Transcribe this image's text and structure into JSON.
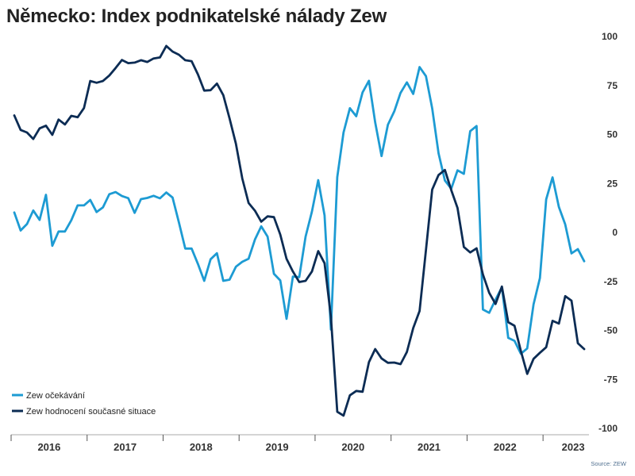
{
  "source": "Source: ZEW",
  "colors": {
    "axis": "#a8a8a8",
    "tick": "#555555"
  },
  "chart_data": {
    "type": "line",
    "title": "Německo: Index podnikatelské nálady Zew",
    "ylim": [
      -100,
      100
    ],
    "yaxis_side": "right",
    "grid": false,
    "legend": {
      "placement": "bottom-left"
    },
    "y_ticks": [
      100,
      75,
      50,
      25,
      0,
      -25,
      -50,
      -75,
      -100
    ],
    "x_tick_labels": [
      "2016",
      "2017",
      "2018",
      "2019",
      "2020",
      "2021",
      "2022",
      "2023"
    ],
    "x": [
      "2016-01",
      "2016-02",
      "2016-03",
      "2016-04",
      "2016-05",
      "2016-06",
      "2016-07",
      "2016-08",
      "2016-09",
      "2016-10",
      "2016-11",
      "2016-12",
      "2017-01",
      "2017-02",
      "2017-03",
      "2017-04",
      "2017-05",
      "2017-06",
      "2017-07",
      "2017-08",
      "2017-09",
      "2017-10",
      "2017-11",
      "2017-12",
      "2018-01",
      "2018-02",
      "2018-03",
      "2018-04",
      "2018-05",
      "2018-06",
      "2018-07",
      "2018-08",
      "2018-09",
      "2018-10",
      "2018-11",
      "2018-12",
      "2019-01",
      "2019-02",
      "2019-03",
      "2019-04",
      "2019-05",
      "2019-06",
      "2019-07",
      "2019-08",
      "2019-09",
      "2019-10",
      "2019-11",
      "2019-12",
      "2020-01",
      "2020-02",
      "2020-03",
      "2020-04",
      "2020-05",
      "2020-06",
      "2020-07",
      "2020-08",
      "2020-09",
      "2020-10",
      "2020-11",
      "2020-12",
      "2021-01",
      "2021-02",
      "2021-03",
      "2021-04",
      "2021-05",
      "2021-06",
      "2021-07",
      "2021-08",
      "2021-09",
      "2021-10",
      "2021-11",
      "2021-12",
      "2022-01",
      "2022-02",
      "2022-03",
      "2022-04",
      "2022-05",
      "2022-06",
      "2022-07",
      "2022-08",
      "2022-09",
      "2022-10",
      "2022-11",
      "2022-12",
      "2023-01",
      "2023-02",
      "2023-03",
      "2023-04",
      "2023-05",
      "2023-06",
      "2023-07"
    ],
    "series": [
      {
        "name": "Zew očekávání",
        "color": "#1d9bd3",
        "values": [
          10.2,
          1.0,
          4.3,
          11.2,
          6.4,
          19.2,
          -6.8,
          0.5,
          0.5,
          6.2,
          13.8,
          13.8,
          16.6,
          10.4,
          12.8,
          19.5,
          20.6,
          18.6,
          17.5,
          10.0,
          17.0,
          17.6,
          18.7,
          17.4,
          20.4,
          17.8,
          5.1,
          -8.2,
          -8.2,
          -16.1,
          -24.7,
          -13.7,
          -10.6,
          -24.7,
          -24.1,
          -17.5,
          -15.0,
          -13.4,
          -3.6,
          3.1,
          -2.1,
          -21.1,
          -24.5,
          -44.1,
          -22.5,
          -22.8,
          -2.1,
          10.7,
          26.7,
          8.7,
          -49.5,
          28.2,
          51.0,
          63.4,
          59.3,
          71.5,
          77.4,
          56.1,
          39.0,
          55.0,
          61.8,
          71.2,
          76.6,
          70.7,
          84.4,
          79.8,
          63.3,
          40.4,
          26.5,
          22.3,
          31.7,
          29.9,
          51.7,
          54.3,
          -39.3,
          -41.0,
          -34.3,
          -28.0,
          -53.8,
          -55.3,
          -61.9,
          -59.2,
          -36.7,
          -23.3,
          16.9,
          28.1,
          13.0,
          4.1,
          -10.7,
          -8.5,
          -14.7
        ]
      },
      {
        "name": "Zew hodnocení současné situace",
        "color": "#0c2c54",
        "values": [
          59.7,
          52.3,
          51.0,
          47.7,
          53.1,
          54.5,
          49.8,
          57.6,
          55.1,
          59.5,
          58.8,
          63.5,
          77.3,
          76.4,
          77.3,
          80.1,
          83.9,
          88.0,
          86.4,
          86.7,
          87.9,
          87.0,
          88.8,
          89.3,
          95.2,
          92.3,
          90.7,
          87.9,
          87.4,
          80.6,
          72.4,
          72.6,
          76.0,
          70.1,
          58.2,
          45.3,
          27.6,
          15.0,
          11.1,
          5.5,
          8.2,
          7.8,
          -1.1,
          -13.5,
          -19.9,
          -25.3,
          -24.7,
          -19.9,
          -9.5,
          -15.7,
          -43.1,
          -91.5,
          -93.5,
          -83.1,
          -80.9,
          -81.3,
          -66.2,
          -59.5,
          -64.3,
          -66.5,
          -66.4,
          -67.2,
          -61.0,
          -48.8,
          -40.1,
          -9.1,
          21.9,
          29.3,
          31.9,
          21.6,
          12.5,
          -7.4,
          -10.2,
          -8.1,
          -21.4,
          -30.8,
          -36.5,
          -27.6,
          -45.8,
          -47.6,
          -60.5,
          -72.2,
          -64.5,
          -61.4,
          -58.6,
          -45.1,
          -46.5,
          -32.5,
          -34.8,
          -56.5,
          -59.5
        ]
      }
    ]
  }
}
